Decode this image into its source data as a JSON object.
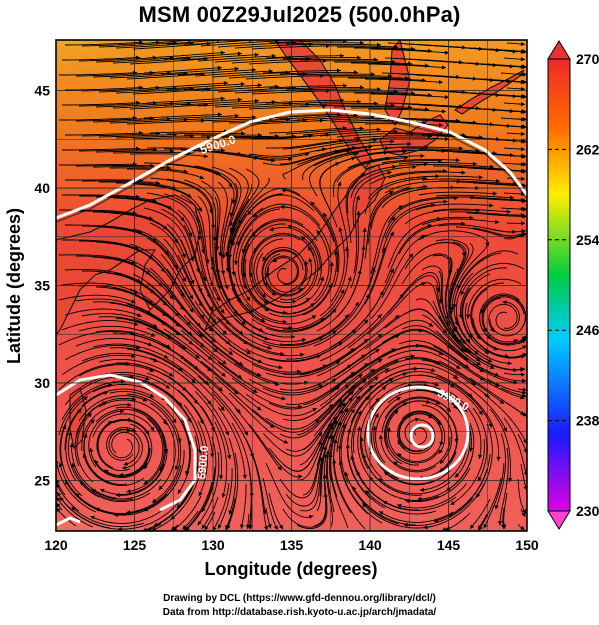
{
  "title": "MSM 00Z29Jul2025 (500.0hPa)",
  "map": {
    "x_axis": {
      "label": "Longitude (degrees)",
      "range": [
        120,
        150
      ],
      "ticks": [
        "120",
        "125",
        "130",
        "135",
        "140",
        "145",
        "150"
      ]
    },
    "y_axis": {
      "label": "Latitude  (degrees)",
      "range": [
        22.4,
        47.6
      ],
      "ticks": [
        "25",
        "30",
        "35",
        "40",
        "45"
      ]
    },
    "contour_label": "5900.0",
    "colors": {
      "north": "#f07a1c",
      "mid": "#ee4b35",
      "south": "#f0605a",
      "yellow_corner": "#e8c832",
      "contour": "#ffffff",
      "stream": "#000000"
    }
  },
  "colorbar": {
    "min": 230,
    "max": 270,
    "ticks": [
      "270",
      "262",
      "254",
      "246",
      "238",
      "230"
    ],
    "stops": [
      "#e000e0",
      "#1a1aff",
      "#00ccff",
      "#00cc44",
      "#ffee00",
      "#ff6a00",
      "#ee2a2a"
    ]
  },
  "credits": {
    "line1": "Drawing by DCL (https://www.gfd-dennou.org/library/dcl/)",
    "line2": "Data from http://database.rish.kyoto-u.ac.jp/arch/jmadata/"
  }
}
